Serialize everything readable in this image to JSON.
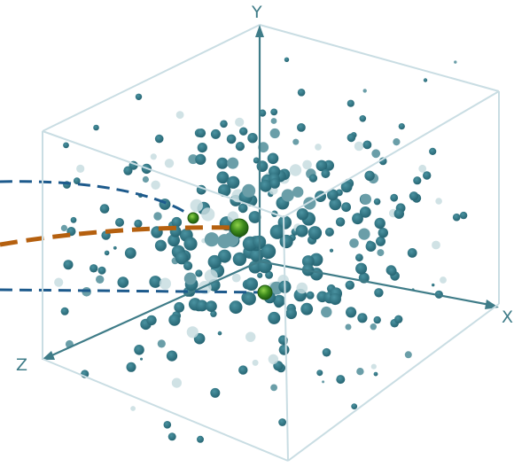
{
  "axes": {
    "x_label": "X",
    "y_label": "Y",
    "z_label": "Z"
  },
  "colors": {
    "box_edge": "#c9dde3",
    "axis": "#3f7c88",
    "point_main": "#2f7281",
    "point_mid": "#6a9ea8",
    "point_faint": "#c8dde1",
    "highlight": "#3d8a1c",
    "highlight_rim": "#1f5a10",
    "curve_blue": "#1d5a8c",
    "curve_orange": "#b5600f"
  },
  "scene": {
    "description_shape": "3d-wireframe-cube",
    "point_cloud": "dense-blue-spheres",
    "highlighted_points": 3,
    "dashed_curves": [
      "blue-upper",
      "orange-middle",
      "blue-lower"
    ]
  }
}
